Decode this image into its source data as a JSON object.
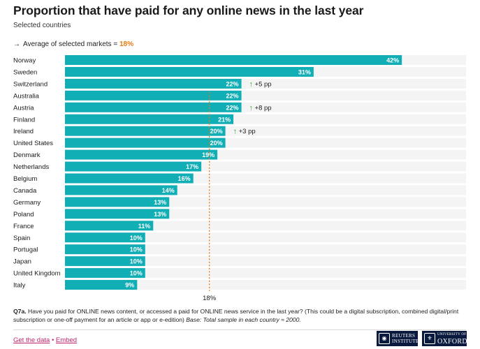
{
  "header": {
    "title": "Proportion that have paid for any online news in the last year",
    "subtitle": "Selected countries",
    "average_arrow": "→",
    "average_text": "Average of selected markets =",
    "average_value": "18%"
  },
  "chart_data": {
    "type": "bar",
    "orientation": "horizontal",
    "title": "Proportion that have paid for any online news in the last year",
    "unit": "%",
    "xlim": [
      0,
      50
    ],
    "average": 18,
    "average_label": "18%",
    "colors": {
      "bar": "#12aeb6",
      "track": "#f4f4f4",
      "average_line": "#e8780f",
      "change_arrow": "#3aa935"
    },
    "categories": [
      "Norway",
      "Sweden",
      "Switzerland",
      "Australia",
      "Austria",
      "Finland",
      "Ireland",
      "United States",
      "Denmark",
      "Netherlands",
      "Belgium",
      "Canada",
      "Germany",
      "Poland",
      "France",
      "Spain",
      "Portugal",
      "Japan",
      "United Kingdom",
      "Italy"
    ],
    "values": [
      42,
      31,
      22,
      22,
      22,
      21,
      20,
      20,
      19,
      17,
      16,
      14,
      13,
      13,
      11,
      10,
      10,
      10,
      10,
      9
    ],
    "value_labels": [
      "42%",
      "31%",
      "22%",
      "22%",
      "22%",
      "21%",
      "20%",
      "20%",
      "19%",
      "17%",
      "16%",
      "14%",
      "13%",
      "13%",
      "11%",
      "10%",
      "10%",
      "10%",
      "10%",
      "9%"
    ],
    "changes": [
      {
        "country": "Switzerland",
        "label": "+5 pp",
        "arrow": "↑"
      },
      {
        "country": "Austria",
        "label": "+8 pp",
        "arrow": "↑"
      },
      {
        "country": "Ireland",
        "label": "+3 pp",
        "arrow": "↑"
      }
    ]
  },
  "footnote": {
    "question_id": "Q7a.",
    "question_text": "Have you paid for ONLINE news content, or accessed a paid for ONLINE news service in the last year? (This could be a digital subscription, combined digital/print subscription or one-off payment for an article or app or e-edition)",
    "base_text": "Base: Total sample in each country ≈ 2000."
  },
  "links": {
    "get_data": "Get the data",
    "separator": "•",
    "embed": "Embed"
  },
  "logos": {
    "reuters_line1": "REUTERS",
    "reuters_line2": "INSTITUTE",
    "oxford_line1": "UNIVERSITY OF",
    "oxford_line2": "OXFORD"
  }
}
